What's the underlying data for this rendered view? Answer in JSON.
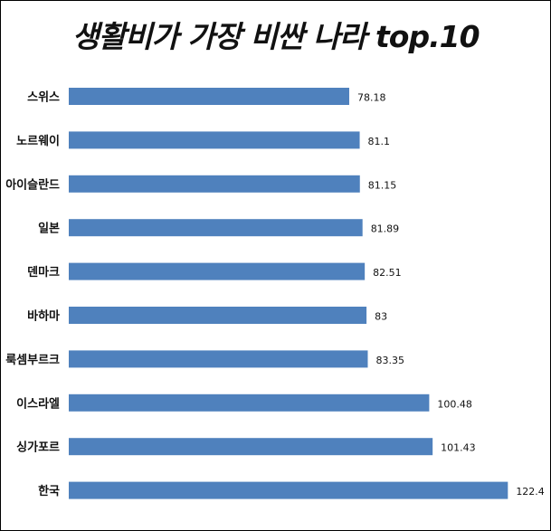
{
  "chart_data": {
    "type": "bar",
    "orientation": "horizontal",
    "title": "생활비가 가장 비싼 나라 top.10",
    "categories": [
      "스위스",
      "노르웨이",
      "아이슬란드",
      "일본",
      "덴마크",
      "바하마",
      "룩셈부르크",
      "이스라엘",
      "싱가포르",
      "한국"
    ],
    "values": [
      78.18,
      81.1,
      81.15,
      81.89,
      82.51,
      83,
      83.35,
      100.48,
      101.43,
      122.4
    ],
    "value_labels": [
      "78.18",
      "81.1",
      "81.15",
      "81.89",
      "82.51",
      "83",
      "83.35",
      "100.48",
      "101.43",
      "122.4"
    ],
    "bar_color": "#4f81bd",
    "xlim": [
      0,
      150
    ],
    "grid": false,
    "legend": "none"
  }
}
